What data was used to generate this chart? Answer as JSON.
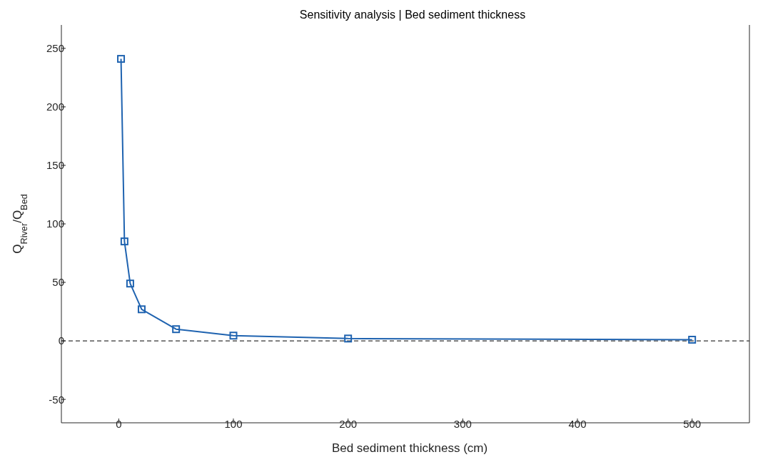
{
  "chart_data": {
    "type": "line",
    "title": "Sensitivity analysis | Bed sediment thickness",
    "xlabel": "Bed sediment thickness (cm)",
    "ylabel": "Q$_{River}$/Q$_{Bed}$",
    "x": [
      2,
      5,
      10,
      20,
      50,
      100,
      200,
      500
    ],
    "series": [
      {
        "color": "#1f63b0",
        "values": [
          241,
          85,
          49,
          27,
          10,
          4.5,
          2,
          1
        ]
      }
    ],
    "xlim": [
      -50,
      550
    ],
    "xticks": [
      0,
      100,
      200,
      300,
      400,
      500
    ],
    "ylim": [
      -70,
      270
    ],
    "yticks": [
      -50,
      0,
      50,
      100,
      150,
      200,
      250
    ],
    "ref_lines": [
      {
        "axis": "y",
        "value": 0,
        "color": "#000000",
        "line_style": "dashed"
      }
    ],
    "marker": "square",
    "line_style": "solid",
    "grid": false,
    "legend": false
  }
}
